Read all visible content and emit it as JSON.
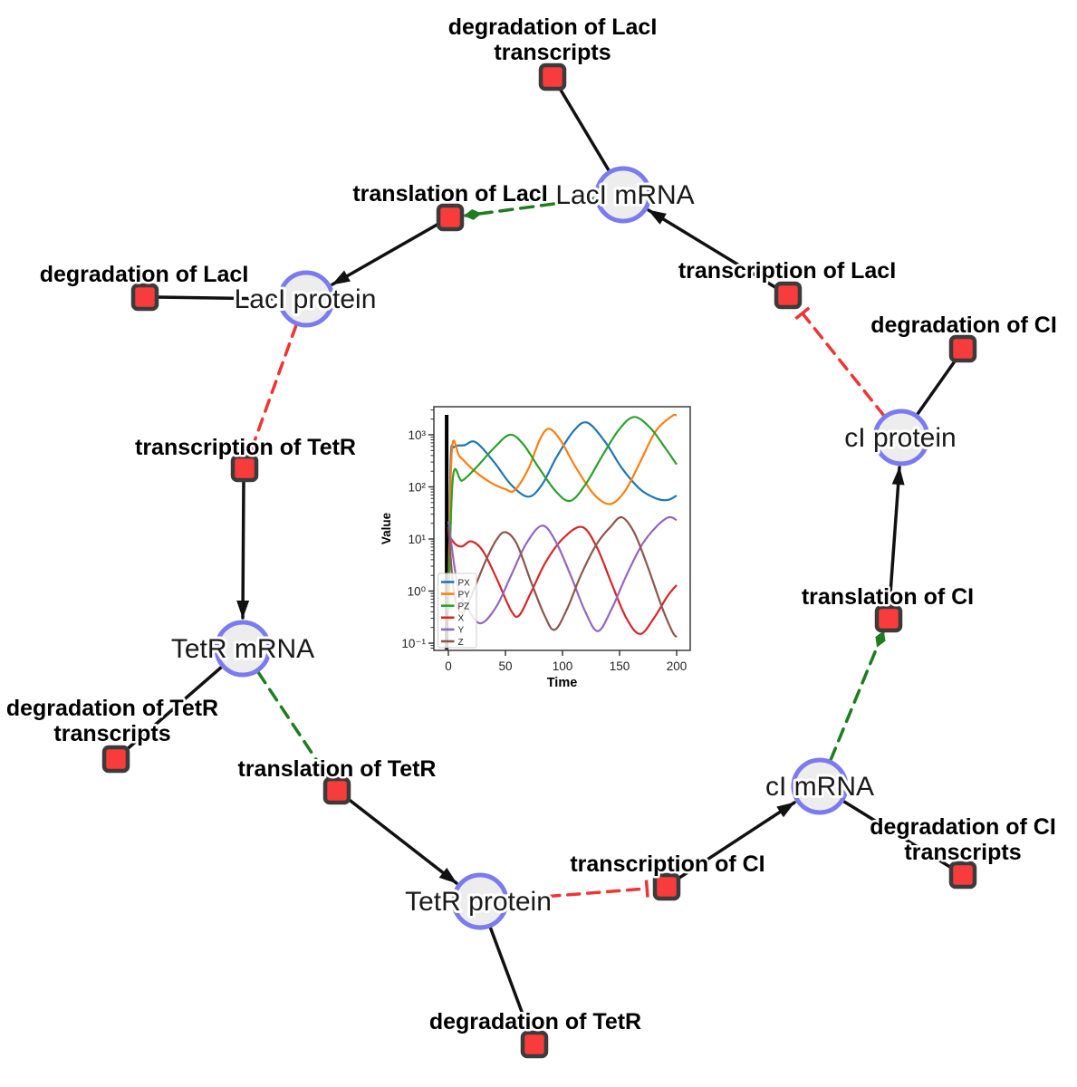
{
  "diagram": {
    "species": [
      {
        "id": "laci-mrna",
        "label": "LacI mRNA"
      },
      {
        "id": "laci-protein",
        "label": "LacI protein"
      },
      {
        "id": "ci-protein",
        "label": "cI protein"
      },
      {
        "id": "tetr-mrna",
        "label": "TetR mRNA"
      },
      {
        "id": "ci-mrna",
        "label": "cI mRNA"
      },
      {
        "id": "tetr-protein",
        "label": "TetR protein"
      }
    ],
    "reactions": [
      {
        "id": "degradation-of-laci-transcripts",
        "lines": [
          "degradation of LacI",
          "transcripts"
        ]
      },
      {
        "id": "translation-of-laci",
        "lines": [
          "translation of LacI"
        ]
      },
      {
        "id": "degradation-of-laci",
        "lines": [
          "degradation of LacI"
        ]
      },
      {
        "id": "transcription-of-laci",
        "lines": [
          "transcription of LacI"
        ]
      },
      {
        "id": "degradation-of-ci",
        "lines": [
          "degradation of CI"
        ]
      },
      {
        "id": "transcription-of-tetr",
        "lines": [
          "transcription of TetR"
        ]
      },
      {
        "id": "translation-of-ci",
        "lines": [
          "translation of CI"
        ]
      },
      {
        "id": "degradation-of-tetr-transcripts",
        "lines": [
          "degradation of TetR",
          "transcripts"
        ]
      },
      {
        "id": "translation-of-tetr",
        "lines": [
          "translation of TetR"
        ]
      },
      {
        "id": "degradation-of-ci-transcripts",
        "lines": [
          "degradation of CI",
          "transcripts"
        ]
      },
      {
        "id": "transcription-of-ci",
        "lines": [
          "transcription of CI"
        ]
      },
      {
        "id": "degradation-of-tetr",
        "lines": [
          "degradation of TetR"
        ]
      }
    ],
    "edge_colors": {
      "production": "#111111",
      "modifier": "#1e7d1e",
      "inhibition": "#f23333"
    },
    "node_colors": {
      "species_fill": "#ededed",
      "species_border": "#7b7bf0",
      "reaction_fill": "#f83b3b",
      "reaction_border": "#3b3b3b"
    }
  },
  "chart_data": {
    "type": "line",
    "title": "",
    "xlabel": "Time",
    "ylabel": "Value",
    "y_scale": "log",
    "grid": false,
    "legend_position": "lower-left",
    "x_ticks": [
      0,
      50,
      100,
      150,
      200
    ],
    "y_ticks_log10": [
      -1,
      0,
      1,
      2,
      3
    ],
    "y_tick_labels": [
      "10⁻¹",
      "10⁰",
      "10¹",
      "10²",
      "10³"
    ],
    "xlim": [
      -13,
      213
    ],
    "ylim_log10": [
      -1.14,
      3.54
    ],
    "annotations": [
      {
        "type": "vline",
        "x": -1.5,
        "color": "#000000"
      }
    ],
    "series": [
      {
        "name": "PX",
        "color": "#1f77b4",
        "points": [
          [
            0,
            0.4
          ],
          [
            2,
            300
          ],
          [
            5,
            580
          ],
          [
            14,
            630
          ],
          [
            24,
            720
          ],
          [
            40,
            300
          ],
          [
            55,
            110
          ],
          [
            70,
            65
          ],
          [
            82,
            110
          ],
          [
            95,
            380
          ],
          [
            110,
            1200
          ],
          [
            122,
            1700
          ],
          [
            138,
            700
          ],
          [
            152,
            230
          ],
          [
            168,
            90
          ],
          [
            182,
            60
          ],
          [
            192,
            56
          ],
          [
            200,
            68
          ]
        ]
      },
      {
        "name": "PY",
        "color": "#ff7f0e",
        "points": [
          [
            0,
            0.4
          ],
          [
            3,
            480
          ],
          [
            10,
            380
          ],
          [
            22,
            210
          ],
          [
            36,
            125
          ],
          [
            50,
            90
          ],
          [
            58,
            86
          ],
          [
            70,
            220
          ],
          [
            80,
            800
          ],
          [
            88,
            1300
          ],
          [
            98,
            800
          ],
          [
            112,
            230
          ],
          [
            128,
            70
          ],
          [
            142,
            47
          ],
          [
            155,
            85
          ],
          [
            168,
            300
          ],
          [
            182,
            1200
          ],
          [
            196,
            2300
          ],
          [
            200,
            2350
          ]
        ]
      },
      {
        "name": "PZ",
        "color": "#2ca02c",
        "points": [
          [
            0,
            0.4
          ],
          [
            4,
            150
          ],
          [
            12,
            132
          ],
          [
            24,
            230
          ],
          [
            40,
            560
          ],
          [
            54,
            1000
          ],
          [
            66,
            640
          ],
          [
            80,
            220
          ],
          [
            95,
            78
          ],
          [
            107,
            54
          ],
          [
            120,
            110
          ],
          [
            135,
            400
          ],
          [
            150,
            1300
          ],
          [
            163,
            2200
          ],
          [
            177,
            1350
          ],
          [
            190,
            560
          ],
          [
            200,
            270
          ]
        ]
      },
      {
        "name": "X",
        "color": "#d62728",
        "points": [
          [
            0,
            12
          ],
          [
            6,
            8
          ],
          [
            12,
            7.2
          ],
          [
            20,
            9
          ],
          [
            30,
            6
          ],
          [
            42,
            1.8
          ],
          [
            55,
            0.42
          ],
          [
            62,
            0.34
          ],
          [
            72,
            0.9
          ],
          [
            85,
            3.5
          ],
          [
            100,
            10
          ],
          [
            117,
            17
          ],
          [
            130,
            7
          ],
          [
            143,
            1.4
          ],
          [
            156,
            0.3
          ],
          [
            168,
            0.15
          ],
          [
            180,
            0.3
          ],
          [
            192,
            0.8
          ],
          [
            200,
            1.3
          ]
        ]
      },
      {
        "name": "Y",
        "color": "#9467bd",
        "points": [
          [
            0,
            22
          ],
          [
            8,
            1.3
          ],
          [
            16,
            0.5
          ],
          [
            28,
            0.24
          ],
          [
            42,
            0.5
          ],
          [
            55,
            2
          ],
          [
            68,
            8
          ],
          [
            82,
            18
          ],
          [
            94,
            9
          ],
          [
            108,
            1.8
          ],
          [
            120,
            0.4
          ],
          [
            131,
            0.17
          ],
          [
            143,
            0.45
          ],
          [
            156,
            2
          ],
          [
            170,
            8
          ],
          [
            182,
            17
          ],
          [
            193,
            26
          ],
          [
            200,
            23
          ]
        ]
      },
      {
        "name": "Z",
        "color": "#8c564b",
        "points": [
          [
            0,
            17
          ],
          [
            5,
            0.9
          ],
          [
            12,
            0.38
          ],
          [
            20,
            0.8
          ],
          [
            32,
            3.5
          ],
          [
            42,
            9.5
          ],
          [
            50,
            13.5
          ],
          [
            60,
            8
          ],
          [
            72,
            1.6
          ],
          [
            84,
            0.35
          ],
          [
            93,
            0.18
          ],
          [
            104,
            0.45
          ],
          [
            116,
            2
          ],
          [
            130,
            8
          ],
          [
            142,
            17
          ],
          [
            152,
            26
          ],
          [
            163,
            13
          ],
          [
            175,
            2.8
          ],
          [
            187,
            0.5
          ],
          [
            196,
            0.17
          ],
          [
            200,
            0.13
          ]
        ]
      }
    ]
  }
}
